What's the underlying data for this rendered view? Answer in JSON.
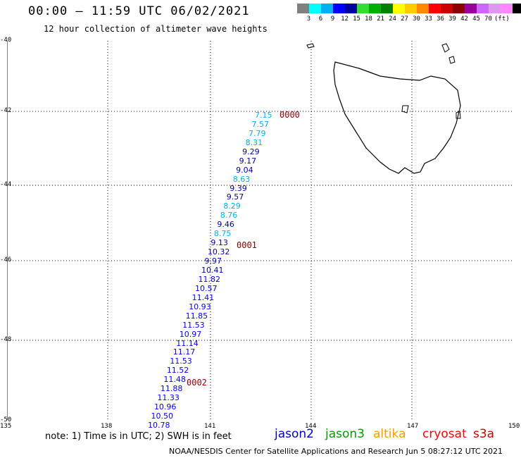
{
  "header": {
    "title": "00:00 – 11:59 UTC 06/02/2021",
    "subtitle": "12 hour collection of altimeter wave heights"
  },
  "legend": {
    "colors": [
      "#808080",
      "#00ffff",
      "#00b0f0",
      "#0000ff",
      "#0000a0",
      "#33dd33",
      "#00b000",
      "#008000",
      "#ffff00",
      "#ffcc00",
      "#ff8800",
      "#ff0000",
      "#cc0000",
      "#8b0000",
      "#990099",
      "#cc66ff",
      "#dd99ee",
      "#ff88ff",
      "#000000"
    ],
    "labels": [
      "3",
      "6",
      "9",
      "12",
      "15",
      "18",
      "21",
      "24",
      "27",
      "30",
      "33",
      "36",
      "39",
      "42",
      "45",
      "70",
      "(ft)"
    ]
  },
  "axes": {
    "lat_labels": [
      "-40",
      "-42",
      "-44",
      "-46",
      "-48",
      "-50"
    ],
    "lon_labels": [
      "135",
      "138",
      "141",
      "144",
      "147",
      "150"
    ]
  },
  "track": {
    "values": [
      "7.15",
      "7.57",
      "7.79",
      "8.31",
      "9.29",
      "9.17",
      "9.04",
      "8.63",
      "9.39",
      "9.57",
      "8.29",
      "8.76",
      "9.46",
      "8.75",
      "9.13",
      "10.32",
      "9.97",
      "10.41",
      "11.82",
      "10.57",
      "11.41",
      "10.93",
      "11.85",
      "11.53",
      "10.97",
      "11.14",
      "11.17",
      "11.53",
      "11.52",
      "11.48",
      "11.88",
      "11.33",
      "10.96",
      "10.50",
      "10.78"
    ],
    "colors": [
      "#00b0f0",
      "#00b0f0",
      "#00b0f0",
      "#00b0f0",
      "#0000a0",
      "#0000a0",
      "#0000a0",
      "#00b0f0",
      "#0000a0",
      "#0000a0",
      "#00b0f0",
      "#00b0f0",
      "#0000a0",
      "#00b0f0",
      "#0000a0",
      "#0000a0",
      "#0000a0",
      "#0000a0",
      "#0000ff",
      "#0000ff",
      "#0000ff",
      "#0000ff",
      "#0000ff",
      "#0000ff",
      "#0000ff",
      "#0000ff",
      "#0000ff",
      "#0000ff",
      "#0000ff",
      "#0000ff",
      "#0000ff",
      "#0000ff",
      "#0000ff",
      "#0000ff",
      "#0000ff"
    ],
    "time_labels": [
      "0000",
      "0001",
      "0002"
    ]
  },
  "footer": {
    "note": "note: 1) Time is in UTC; 2) SWH is in feet",
    "satellites": [
      {
        "name": "jason2",
        "color": "#0000cc"
      },
      {
        "name": "jason3",
        "color": "#009900"
      },
      {
        "name": "altika",
        "color": "#ff9900"
      },
      {
        "name": "cryosat",
        "color": "#ff0000"
      },
      {
        "name": "s3a",
        "color": "#cc0000"
      }
    ],
    "credit": "NOAA/NESDIS Center for Satellite Applications and Research   Jun  5 08:27:12 UTC 2021"
  }
}
